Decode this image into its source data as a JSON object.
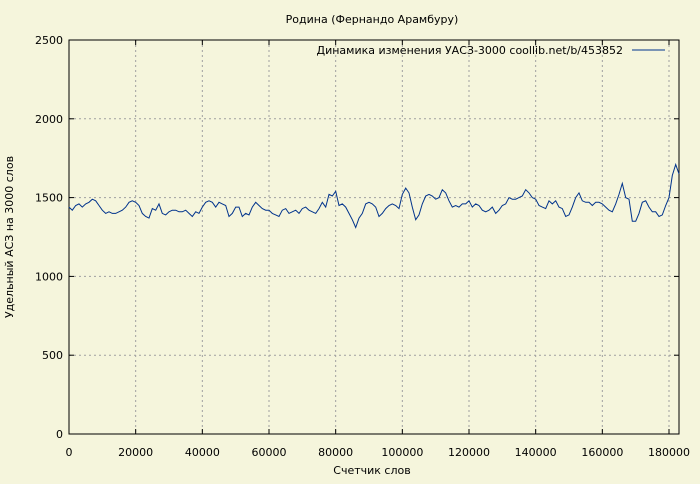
{
  "chart_data": {
    "type": "line",
    "title": "Родина (Фернандо Арамбуру)",
    "xlabel": "Счетчик слов",
    "ylabel": "Удельный АСЗ на 3000 слов",
    "xlim": [
      0,
      183000
    ],
    "ylim": [
      0,
      2500
    ],
    "x_ticks": [
      0,
      20000,
      40000,
      60000,
      80000,
      100000,
      120000,
      140000,
      160000,
      180000
    ],
    "y_ticks": [
      0,
      500,
      1000,
      1500,
      2000,
      2500
    ],
    "grid": true,
    "legend_position": "top-right",
    "series": [
      {
        "name": "Динамика изменения УАСЗ-3000  coollib.net/b/453852",
        "color": "#00338c",
        "points": [
          [
            0,
            1440
          ],
          [
            1000,
            1420
          ],
          [
            2000,
            1450
          ],
          [
            3000,
            1460
          ],
          [
            4000,
            1440
          ],
          [
            5000,
            1460
          ],
          [
            6000,
            1470
          ],
          [
            7000,
            1490
          ],
          [
            8000,
            1480
          ],
          [
            9000,
            1450
          ],
          [
            10000,
            1420
          ],
          [
            11000,
            1400
          ],
          [
            12000,
            1410
          ],
          [
            13000,
            1400
          ],
          [
            14000,
            1400
          ],
          [
            15000,
            1410
          ],
          [
            16000,
            1420
          ],
          [
            17000,
            1440
          ],
          [
            18000,
            1470
          ],
          [
            19000,
            1480
          ],
          [
            20000,
            1470
          ],
          [
            21000,
            1450
          ],
          [
            22000,
            1400
          ],
          [
            23000,
            1380
          ],
          [
            24000,
            1370
          ],
          [
            25000,
            1430
          ],
          [
            26000,
            1420
          ],
          [
            27000,
            1460
          ],
          [
            28000,
            1400
          ],
          [
            29000,
            1390
          ],
          [
            30000,
            1410
          ],
          [
            31000,
            1420
          ],
          [
            32000,
            1420
          ],
          [
            33000,
            1410
          ],
          [
            34000,
            1410
          ],
          [
            35000,
            1420
          ],
          [
            36000,
            1400
          ],
          [
            37000,
            1380
          ],
          [
            38000,
            1410
          ],
          [
            39000,
            1400
          ],
          [
            40000,
            1440
          ],
          [
            41000,
            1470
          ],
          [
            42000,
            1480
          ],
          [
            43000,
            1470
          ],
          [
            44000,
            1440
          ],
          [
            45000,
            1470
          ],
          [
            46000,
            1460
          ],
          [
            47000,
            1450
          ],
          [
            48000,
            1380
          ],
          [
            49000,
            1400
          ],
          [
            50000,
            1440
          ],
          [
            51000,
            1440
          ],
          [
            52000,
            1380
          ],
          [
            53000,
            1400
          ],
          [
            54000,
            1390
          ],
          [
            55000,
            1440
          ],
          [
            56000,
            1470
          ],
          [
            57000,
            1450
          ],
          [
            58000,
            1430
          ],
          [
            59000,
            1420
          ],
          [
            60000,
            1420
          ],
          [
            61000,
            1400
          ],
          [
            62000,
            1390
          ],
          [
            63000,
            1380
          ],
          [
            64000,
            1420
          ],
          [
            65000,
            1430
          ],
          [
            66000,
            1400
          ],
          [
            67000,
            1410
          ],
          [
            68000,
            1420
          ],
          [
            69000,
            1400
          ],
          [
            70000,
            1430
          ],
          [
            71000,
            1440
          ],
          [
            72000,
            1420
          ],
          [
            73000,
            1410
          ],
          [
            74000,
            1400
          ],
          [
            75000,
            1430
          ],
          [
            76000,
            1470
          ],
          [
            77000,
            1440
          ],
          [
            78000,
            1520
          ],
          [
            79000,
            1510
          ],
          [
            80000,
            1540
          ],
          [
            81000,
            1450
          ],
          [
            82000,
            1460
          ],
          [
            83000,
            1440
          ],
          [
            84000,
            1400
          ],
          [
            85000,
            1360
          ],
          [
            86000,
            1310
          ],
          [
            87000,
            1370
          ],
          [
            88000,
            1400
          ],
          [
            89000,
            1460
          ],
          [
            90000,
            1470
          ],
          [
            91000,
            1460
          ],
          [
            92000,
            1440
          ],
          [
            93000,
            1380
          ],
          [
            94000,
            1400
          ],
          [
            95000,
            1430
          ],
          [
            96000,
            1450
          ],
          [
            97000,
            1460
          ],
          [
            98000,
            1450
          ],
          [
            99000,
            1430
          ],
          [
            100000,
            1520
          ],
          [
            101000,
            1560
          ],
          [
            102000,
            1530
          ],
          [
            103000,
            1440
          ],
          [
            104000,
            1360
          ],
          [
            105000,
            1390
          ],
          [
            106000,
            1460
          ],
          [
            107000,
            1510
          ],
          [
            108000,
            1520
          ],
          [
            109000,
            1510
          ],
          [
            110000,
            1490
          ],
          [
            111000,
            1500
          ],
          [
            112000,
            1550
          ],
          [
            113000,
            1530
          ],
          [
            114000,
            1480
          ],
          [
            115000,
            1440
          ],
          [
            116000,
            1450
          ],
          [
            117000,
            1440
          ],
          [
            118000,
            1460
          ],
          [
            119000,
            1460
          ],
          [
            120000,
            1480
          ],
          [
            121000,
            1440
          ],
          [
            122000,
            1460
          ],
          [
            123000,
            1450
          ],
          [
            124000,
            1420
          ],
          [
            125000,
            1410
          ],
          [
            126000,
            1420
          ],
          [
            127000,
            1440
          ],
          [
            128000,
            1400
          ],
          [
            129000,
            1420
          ],
          [
            130000,
            1450
          ],
          [
            131000,
            1460
          ],
          [
            132000,
            1500
          ],
          [
            133000,
            1490
          ],
          [
            134000,
            1490
          ],
          [
            135000,
            1500
          ],
          [
            136000,
            1510
          ],
          [
            137000,
            1550
          ],
          [
            138000,
            1530
          ],
          [
            139000,
            1500
          ],
          [
            140000,
            1490
          ],
          [
            141000,
            1450
          ],
          [
            142000,
            1440
          ],
          [
            143000,
            1430
          ],
          [
            144000,
            1480
          ],
          [
            145000,
            1460
          ],
          [
            146000,
            1480
          ],
          [
            147000,
            1440
          ],
          [
            148000,
            1430
          ],
          [
            149000,
            1380
          ],
          [
            150000,
            1390
          ],
          [
            151000,
            1440
          ],
          [
            152000,
            1500
          ],
          [
            153000,
            1530
          ],
          [
            154000,
            1480
          ],
          [
            155000,
            1470
          ],
          [
            156000,
            1470
          ],
          [
            157000,
            1450
          ],
          [
            158000,
            1470
          ],
          [
            159000,
            1470
          ],
          [
            160000,
            1460
          ],
          [
            161000,
            1440
          ],
          [
            162000,
            1420
          ],
          [
            163000,
            1410
          ],
          [
            164000,
            1460
          ],
          [
            165000,
            1520
          ],
          [
            166000,
            1590
          ],
          [
            167000,
            1500
          ],
          [
            168000,
            1490
          ],
          [
            169000,
            1350
          ],
          [
            170000,
            1350
          ],
          [
            171000,
            1400
          ],
          [
            172000,
            1470
          ],
          [
            173000,
            1480
          ],
          [
            174000,
            1440
          ],
          [
            175000,
            1410
          ],
          [
            176000,
            1410
          ],
          [
            177000,
            1380
          ],
          [
            178000,
            1390
          ],
          [
            179000,
            1450
          ],
          [
            180000,
            1500
          ],
          [
            181000,
            1640
          ],
          [
            182000,
            1710
          ],
          [
            183000,
            1650
          ]
        ]
      }
    ]
  }
}
